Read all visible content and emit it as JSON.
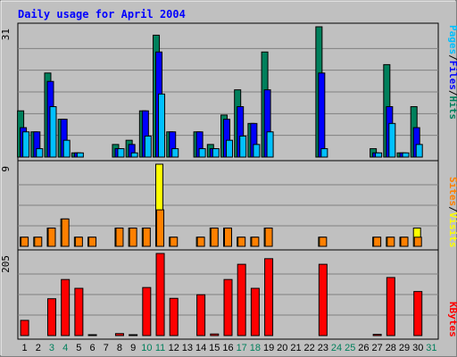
{
  "title": "Daily usage for April 2004",
  "colors": {
    "frame_bg": "#c0c0c0",
    "title": "#0000ff",
    "hits": "#00805c",
    "files": "#0000ff",
    "pages": "#00c0ff",
    "visits": "#ffff00",
    "sites": "#ff8000",
    "kbytes": "#ff0000",
    "weekend": "#00805c",
    "weekday": "#000000"
  },
  "legend_top": {
    "pages": "Pages",
    "files": "Files",
    "hits": "Hits",
    "sep": "/"
  },
  "legend_mid": {
    "sites": "Sites",
    "visits": "Visits",
    "sep": "/"
  },
  "legend_bot": {
    "kbytes": "KBytes"
  },
  "chart_data": {
    "type": "bar",
    "x": [
      1,
      2,
      3,
      4,
      5,
      6,
      7,
      8,
      9,
      10,
      11,
      12,
      13,
      14,
      15,
      16,
      17,
      18,
      19,
      20,
      21,
      22,
      23,
      24,
      25,
      26,
      27,
      28,
      29,
      30,
      31
    ],
    "x_labels": [
      "1",
      "2",
      "3",
      "4",
      "5",
      "6",
      "7",
      "8",
      "9",
      "10",
      "11",
      "12",
      "13",
      "14",
      "15",
      "16",
      "17",
      "18",
      "19",
      "20",
      "21",
      "22",
      "23",
      "24",
      "25",
      "26",
      "27",
      "28",
      "29",
      "30",
      "31"
    ],
    "weekend_days": [
      3,
      4,
      10,
      11,
      17,
      18,
      24,
      25,
      31
    ],
    "panels": [
      {
        "name": "top",
        "max_label": "31",
        "ylim": [
          0,
          31
        ],
        "series": [
          {
            "name": "Hits",
            "key": "hits",
            "values": [
              11,
              6,
              20,
              9,
              1,
              0,
              0,
              3,
              4,
              11,
              29,
              6,
              0,
              6,
              3,
              10,
              16,
              8,
              25,
              0,
              0,
              0,
              31,
              0,
              0,
              0,
              2,
              22,
              1,
              12,
              0
            ]
          },
          {
            "name": "Files",
            "key": "files",
            "values": [
              7,
              6,
              18,
              9,
              1,
              0,
              0,
              2,
              3,
              11,
              25,
              6,
              0,
              6,
              2,
              9,
              12,
              8,
              16,
              0,
              0,
              0,
              20,
              0,
              0,
              0,
              1,
              12,
              1,
              7,
              0
            ]
          },
          {
            "name": "Pages",
            "key": "pages",
            "values": [
              6,
              2,
              12,
              4,
              1,
              0,
              0,
              2,
              1,
              5,
              15,
              2,
              0,
              2,
              2,
              4,
              5,
              3,
              6,
              0,
              0,
              0,
              2,
              0,
              0,
              0,
              1,
              8,
              1,
              3,
              0
            ]
          }
        ]
      },
      {
        "name": "middle",
        "max_label": "9",
        "ylim": [
          0,
          9
        ],
        "series": [
          {
            "name": "Visits",
            "key": "visits",
            "values": [
              1,
              1,
              2,
              3,
              1,
              1,
              0,
              2,
              2,
              2,
              9,
              1,
              0,
              1,
              2,
              2,
              1,
              1,
              2,
              0,
              0,
              0,
              1,
              0,
              0,
              0,
              1,
              1,
              1,
              2,
              0
            ]
          },
          {
            "name": "Sites",
            "key": "sites",
            "values": [
              1,
              1,
              2,
              3,
              1,
              1,
              0,
              2,
              2,
              2,
              4,
              1,
              0,
              1,
              2,
              2,
              1,
              1,
              2,
              0,
              0,
              0,
              1,
              0,
              0,
              0,
              1,
              1,
              1,
              1,
              0
            ]
          }
        ]
      },
      {
        "name": "bottom",
        "max_label": "205",
        "ylim": [
          0,
          205
        ],
        "series": [
          {
            "name": "KBytes",
            "key": "kbytes",
            "values": [
              38,
              0,
              92,
              140,
              118,
              2,
              0,
              5,
              2,
              120,
              205,
              93,
              0,
              102,
              4,
              140,
              178,
              118,
              192,
              0,
              0,
              0,
              178,
              0,
              0,
              0,
              3,
              145,
              0,
              110,
              0
            ]
          }
        ]
      }
    ]
  }
}
